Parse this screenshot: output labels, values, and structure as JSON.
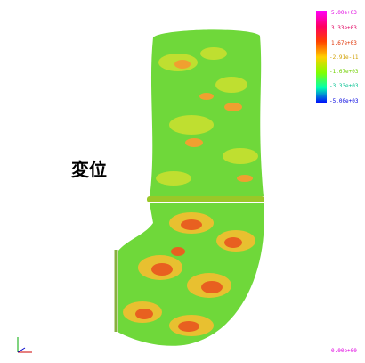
{
  "label": "変位",
  "legend": {
    "labels": [
      "5.00e+03",
      "3.33e+03",
      "1.67e+03",
      "-2.91e-11",
      "-1.67e+03",
      "-3.33e+03",
      "-5.00e+03"
    ]
  },
  "footer": "0.00e+00"
}
